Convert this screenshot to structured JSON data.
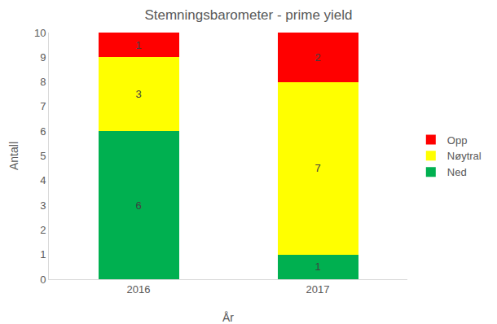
{
  "chart_data": {
    "type": "bar",
    "title": "Stemningsbarometer - prime yield",
    "x_label": "År",
    "y_label": "Antall",
    "categories": [
      "2016",
      "2017"
    ],
    "series": [
      {
        "name": "Ned",
        "color": "#00b050",
        "values": [
          6,
          1
        ]
      },
      {
        "name": "Nøytral",
        "color": "#ffff00",
        "values": [
          3,
          7
        ]
      },
      {
        "name": "Opp",
        "color": "#ff0000",
        "values": [
          1,
          2
        ]
      }
    ],
    "stacked": true,
    "data_labels": true,
    "legend": "right",
    "grid": false,
    "ylim": [
      0,
      10
    ],
    "yticks": [
      0,
      1,
      2,
      3,
      4,
      5,
      6,
      7,
      8,
      9,
      10
    ]
  }
}
